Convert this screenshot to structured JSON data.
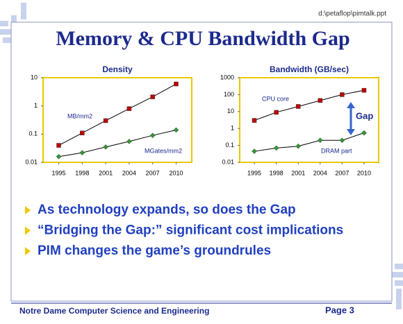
{
  "header": {
    "path": "d:\\petaflop\\pimtalk.ppt",
    "title": "Memory & CPU Bandwidth Gap"
  },
  "chart_data": [
    {
      "type": "line",
      "title": "Density",
      "log_y": true,
      "x": [
        1995,
        1998,
        2001,
        2004,
        2007,
        2010
      ],
      "xlim": [
        1993,
        2012
      ],
      "xticks": [
        1995,
        1998,
        2001,
        2004,
        2007,
        2010
      ],
      "ylim": [
        0.01,
        10
      ],
      "yticks": [
        0.01,
        0.1,
        1,
        10
      ],
      "series": [
        {
          "name": "MB/mm2",
          "color": "#c00000",
          "marker": "square",
          "values": [
            0.04,
            0.11,
            0.3,
            0.8,
            2.1,
            6
          ]
        },
        {
          "name": "MGates/mm2",
          "color": "#339933",
          "marker": "diamond",
          "values": [
            0.016,
            0.022,
            0.035,
            0.055,
            0.09,
            0.14
          ]
        }
      ]
    },
    {
      "type": "line",
      "title": "Bandwidth (GB/sec)",
      "log_y": true,
      "annotation": "Gap",
      "x": [
        1995,
        1998,
        2001,
        2004,
        2007,
        2010
      ],
      "xlim": [
        1993,
        2012
      ],
      "xticks": [
        1995,
        1998,
        2001,
        2004,
        2007,
        2010
      ],
      "ylim": [
        0.01,
        1000
      ],
      "yticks": [
        0.01,
        0.1,
        1,
        10,
        100,
        1000
      ],
      "series": [
        {
          "name": "CPU core",
          "color": "#c00000",
          "marker": "square",
          "values": [
            3,
            9,
            20,
            45,
            100,
            180
          ]
        },
        {
          "name": "DRAM part",
          "color": "#339933",
          "marker": "diamond",
          "values": [
            0.045,
            0.07,
            0.09,
            0.2,
            0.2,
            0.55
          ]
        }
      ]
    }
  ],
  "bullets": [
    "As technology expands, so does the Gap",
    "“Bridging the Gap:” significant cost implications",
    "PIM changes the game’s groundrules"
  ],
  "footer": {
    "left": "Notre Dame Computer Science and Engineering",
    "page": "Page 3"
  }
}
